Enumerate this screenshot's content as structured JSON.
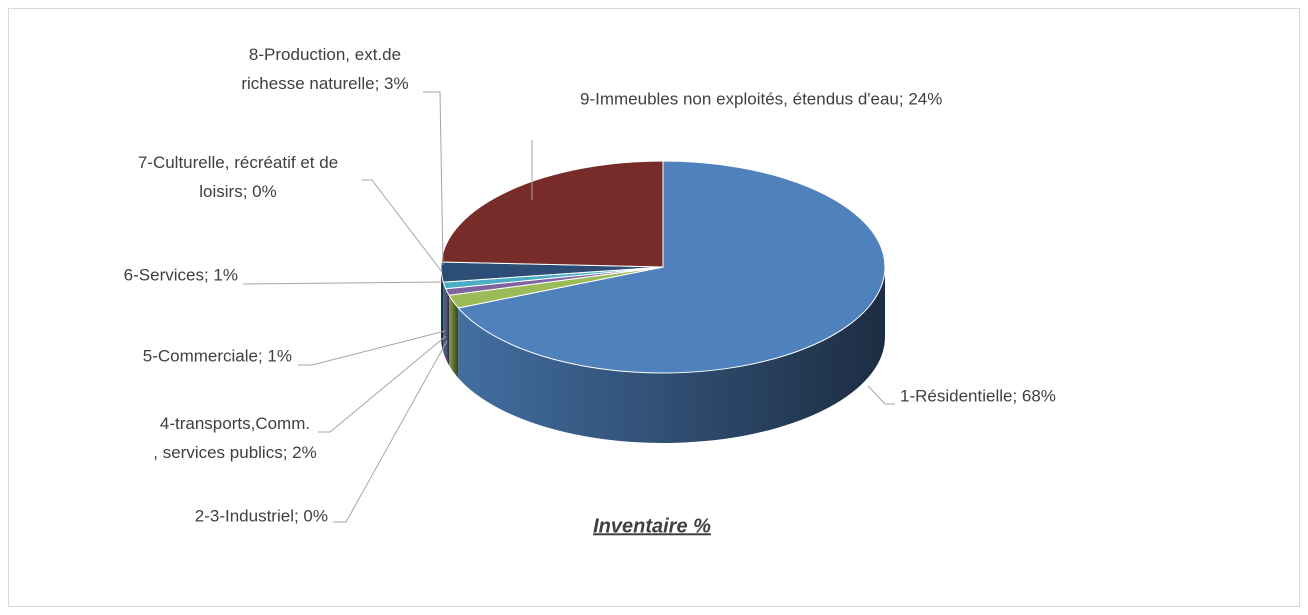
{
  "chart_data": {
    "type": "pie3d",
    "title": "Inventaire %",
    "values": [
      68,
      0,
      2,
      1,
      1,
      0,
      3,
      24
    ],
    "value_labels": [
      "1-Résidentielle; 68%",
      "2-3-Industriel; 0%",
      "4-transports,Comm., services publics; 2%",
      "5-Commerciale; 1%",
      "6-Services; 1%",
      "7-Culturelle, récréatif et de loisirs; 0%",
      "8-Production, ext.de richesse naturelle; 3%",
      "9-Immeubles non exploités, étendus d'eau; 24%"
    ],
    "colors": [
      "#4f81bd",
      "#c0504d",
      "#9bbb59",
      "#8064a2",
      "#4bacc6",
      "#f79646",
      "#2c4d75",
      "#772c2a"
    ]
  }
}
